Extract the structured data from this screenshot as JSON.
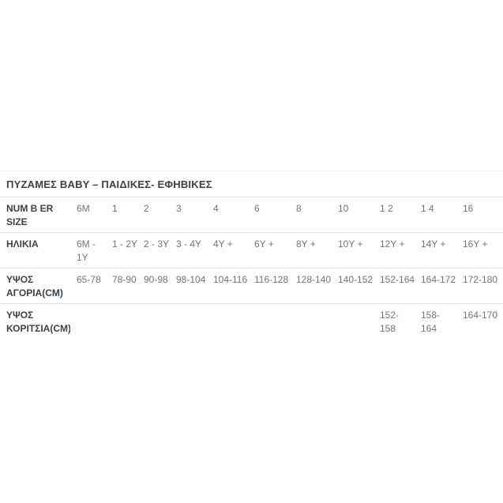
{
  "section": {
    "title": "ΠΥΖΑΜΕΣ BABY – ΠΑΙΔΙΚΕΣ- ΕΦΗΒΙΚΕΣ"
  },
  "table": {
    "rows": [
      {
        "header": "NUM B ER\nSIZE",
        "values": [
          "6M",
          "1",
          "2",
          "3",
          "4",
          "6",
          "8",
          "10",
          "1 2",
          "1 4",
          "16"
        ]
      },
      {
        "header": "ΗΛΙΚΙΑ",
        "values": [
          "6M -\n1Y",
          "1 - 2Y",
          "2 - 3Y",
          "3 - 4Y",
          "4Y +",
          "6Y +",
          "8Y +",
          "10Y +",
          "12Y +",
          "14Y +",
          "16Y +"
        ]
      },
      {
        "header": "ΥΨΟΣ\nΑΓΟΡΙΑ(CM)",
        "values": [
          "65-78",
          "78-90",
          "90-98",
          "98-104",
          "104-116",
          "116-128",
          "128-140",
          "140-152",
          "152-164",
          "164-172",
          "172-180"
        ]
      },
      {
        "header": "ΥΨΟΣ\nΚΟΡΙΤΣΙΑ(CM)",
        "values": [
          "",
          "",
          "",
          "",
          "",
          "",
          "",
          "",
          "152-\n158",
          "158-\n164",
          "164-170"
        ]
      }
    ]
  },
  "colors": {
    "header_text": "#3b4147",
    "value_text": "#70757a",
    "row_border": "#e1e1e1",
    "top_divider": "#f1f1f1",
    "background": "#ffffff"
  }
}
